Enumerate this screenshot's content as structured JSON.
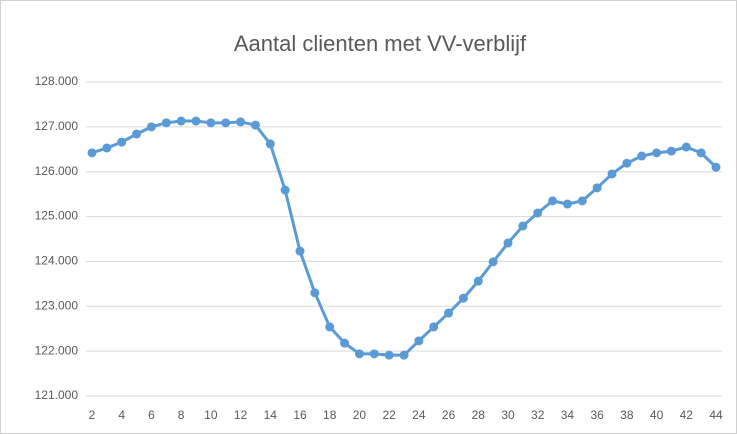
{
  "chart_data": {
    "type": "line",
    "title": "Aantal clienten met VV-verblijf",
    "x": [
      2,
      3,
      4,
      5,
      6,
      7,
      8,
      9,
      10,
      11,
      12,
      13,
      14,
      15,
      16,
      17,
      18,
      19,
      20,
      21,
      22,
      23,
      24,
      25,
      26,
      27,
      28,
      29,
      30,
      31,
      32,
      33,
      34,
      35,
      36,
      37,
      38,
      39,
      40,
      41,
      42,
      43,
      44
    ],
    "values": [
      126420,
      126530,
      126660,
      126840,
      127000,
      127090,
      127130,
      127130,
      127090,
      127090,
      127110,
      127040,
      126620,
      125590,
      124230,
      123300,
      122540,
      122180,
      121940,
      121940,
      121910,
      121910,
      122230,
      122540,
      122850,
      123180,
      123560,
      123990,
      124410,
      124790,
      125080,
      125350,
      125280,
      125350,
      125640,
      125950,
      126190,
      126350,
      126420,
      126460,
      126550,
      126420,
      126100
    ],
    "color": "#5b9bd5",
    "xlim": [
      2,
      44
    ],
    "xticks": [
      2,
      4,
      6,
      8,
      10,
      12,
      14,
      16,
      18,
      20,
      22,
      24,
      26,
      28,
      30,
      32,
      34,
      36,
      38,
      40,
      42,
      44
    ],
    "ylim": [
      121000,
      128000
    ],
    "yticks": [
      {
        "value": 121000,
        "label": "121.000"
      },
      {
        "value": 122000,
        "label": "122.000"
      },
      {
        "value": 123000,
        "label": "123.000"
      },
      {
        "value": 124000,
        "label": "124.000"
      },
      {
        "value": 125000,
        "label": "125.000"
      },
      {
        "value": 126000,
        "label": "126.000"
      },
      {
        "value": 127000,
        "label": "127.000"
      },
      {
        "value": 128000,
        "label": "128.000"
      }
    ],
    "grid": true
  }
}
